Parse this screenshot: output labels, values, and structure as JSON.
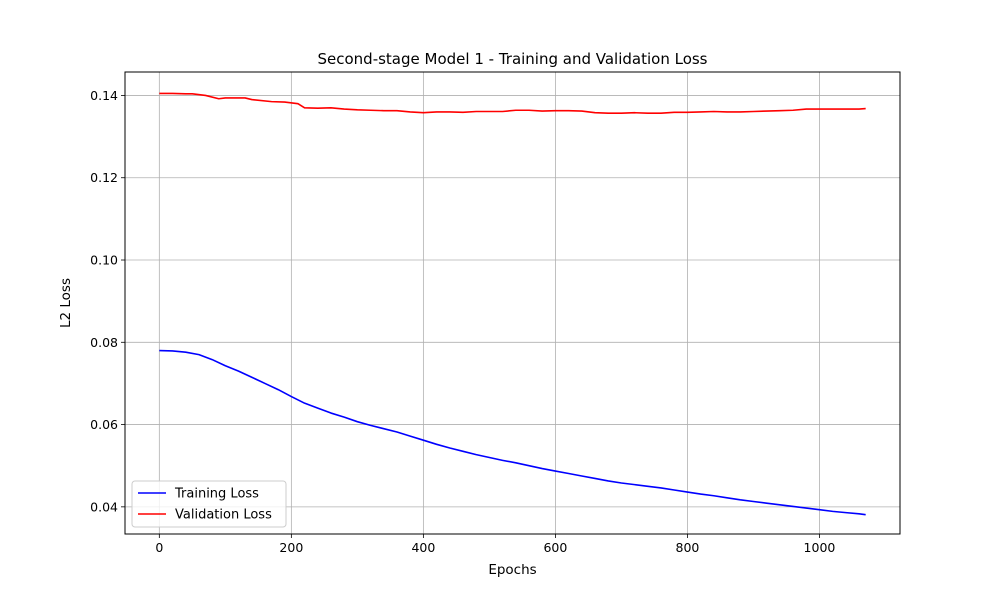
{
  "chart_data": {
    "type": "line",
    "title": "Second-stage Model 1 - Training and Validation Loss",
    "xlabel": "Epochs",
    "ylabel": "L2 Loss",
    "xlim": [
      -52,
      1122
    ],
    "ylim": [
      0.0334,
      0.1457
    ],
    "grid": true,
    "legend_placement": "lower-left",
    "xticks": [
      0,
      200,
      400,
      600,
      800,
      1000
    ],
    "xtick_labels": [
      "0",
      "200",
      "400",
      "600",
      "800",
      "1000"
    ],
    "yticks": [
      0.04,
      0.06,
      0.08,
      0.1,
      0.12,
      0.14
    ],
    "ytick_labels": [
      "0.04",
      "0.06",
      "0.08",
      "0.10",
      "0.12",
      "0.14"
    ],
    "series": [
      {
        "name": "Training Loss",
        "color": "#0000ff",
        "points": [
          [
            0,
            0.078
          ],
          [
            20,
            0.0779
          ],
          [
            40,
            0.0776
          ],
          [
            60,
            0.077
          ],
          [
            80,
            0.0758
          ],
          [
            100,
            0.0743
          ],
          [
            120,
            0.073
          ],
          [
            140,
            0.0715
          ],
          [
            160,
            0.07
          ],
          [
            180,
            0.0685
          ],
          [
            200,
            0.0668
          ],
          [
            220,
            0.0652
          ],
          [
            240,
            0.064
          ],
          [
            260,
            0.0628
          ],
          [
            280,
            0.0618
          ],
          [
            300,
            0.0607
          ],
          [
            320,
            0.0598
          ],
          [
            340,
            0.059
          ],
          [
            360,
            0.0582
          ],
          [
            380,
            0.0572
          ],
          [
            400,
            0.0562
          ],
          [
            420,
            0.0552
          ],
          [
            440,
            0.0543
          ],
          [
            460,
            0.0535
          ],
          [
            480,
            0.0527
          ],
          [
            500,
            0.052
          ],
          [
            520,
            0.0513
          ],
          [
            540,
            0.0507
          ],
          [
            560,
            0.05
          ],
          [
            580,
            0.0493
          ],
          [
            600,
            0.0487
          ],
          [
            620,
            0.0481
          ],
          [
            640,
            0.0475
          ],
          [
            660,
            0.0469
          ],
          [
            680,
            0.0463
          ],
          [
            700,
            0.0458
          ],
          [
            720,
            0.0454
          ],
          [
            740,
            0.045
          ],
          [
            760,
            0.0446
          ],
          [
            780,
            0.0441
          ],
          [
            800,
            0.0436
          ],
          [
            820,
            0.0431
          ],
          [
            840,
            0.0427
          ],
          [
            860,
            0.0422
          ],
          [
            880,
            0.0417
          ],
          [
            900,
            0.0413
          ],
          [
            920,
            0.0409
          ],
          [
            940,
            0.0405
          ],
          [
            960,
            0.0401
          ],
          [
            980,
            0.0397
          ],
          [
            1000,
            0.0393
          ],
          [
            1020,
            0.0389
          ],
          [
            1040,
            0.0386
          ],
          [
            1060,
            0.0383
          ],
          [
            1070,
            0.0381
          ]
        ]
      },
      {
        "name": "Validation Loss",
        "color": "#ff0000",
        "points": [
          [
            0,
            0.1405
          ],
          [
            20,
            0.1405
          ],
          [
            40,
            0.1404
          ],
          [
            50,
            0.1404
          ],
          [
            70,
            0.14
          ],
          [
            90,
            0.1392
          ],
          [
            100,
            0.1394
          ],
          [
            130,
            0.1394
          ],
          [
            140,
            0.139
          ],
          [
            170,
            0.1385
          ],
          [
            190,
            0.1384
          ],
          [
            210,
            0.138
          ],
          [
            220,
            0.137
          ],
          [
            240,
            0.1369
          ],
          [
            260,
            0.137
          ],
          [
            280,
            0.1367
          ],
          [
            300,
            0.1365
          ],
          [
            320,
            0.1364
          ],
          [
            340,
            0.1363
          ],
          [
            360,
            0.1363
          ],
          [
            380,
            0.136
          ],
          [
            400,
            0.1358
          ],
          [
            420,
            0.136
          ],
          [
            440,
            0.136
          ],
          [
            460,
            0.1359
          ],
          [
            480,
            0.1361
          ],
          [
            500,
            0.1361
          ],
          [
            520,
            0.1361
          ],
          [
            540,
            0.1364
          ],
          [
            560,
            0.1364
          ],
          [
            580,
            0.1362
          ],
          [
            600,
            0.1363
          ],
          [
            620,
            0.1363
          ],
          [
            640,
            0.1362
          ],
          [
            660,
            0.1358
          ],
          [
            680,
            0.1357
          ],
          [
            700,
            0.1357
          ],
          [
            720,
            0.1358
          ],
          [
            740,
            0.1357
          ],
          [
            760,
            0.1357
          ],
          [
            780,
            0.1359
          ],
          [
            800,
            0.1359
          ],
          [
            820,
            0.136
          ],
          [
            840,
            0.1361
          ],
          [
            860,
            0.136
          ],
          [
            880,
            0.136
          ],
          [
            900,
            0.1361
          ],
          [
            920,
            0.1362
          ],
          [
            940,
            0.1363
          ],
          [
            960,
            0.1364
          ],
          [
            980,
            0.1367
          ],
          [
            1000,
            0.1367
          ],
          [
            1020,
            0.1367
          ],
          [
            1040,
            0.1367
          ],
          [
            1060,
            0.1367
          ],
          [
            1070,
            0.1368
          ]
        ]
      }
    ]
  }
}
